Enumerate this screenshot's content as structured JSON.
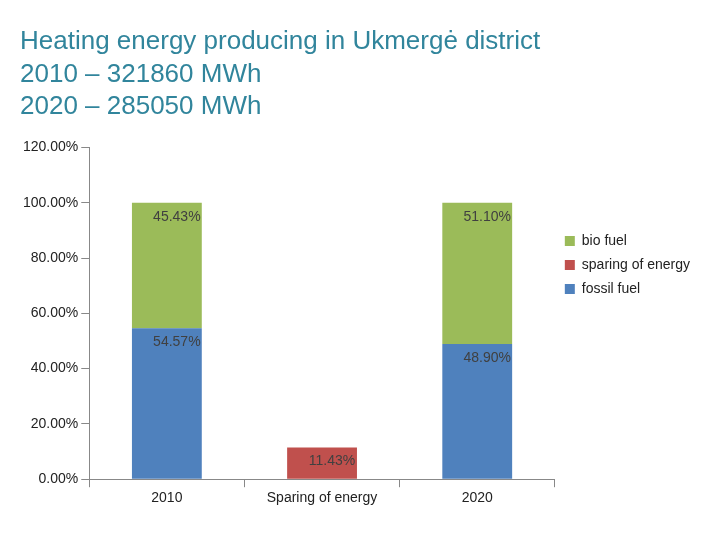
{
  "chart_data": {
    "type": "bar",
    "title": [
      "Heating energy producing in Ukmergė district",
      "2010 – 321860 MWh",
      "2020 – 285050 MWh"
    ],
    "categories": [
      "2010",
      "Sparing of energy",
      "2020"
    ],
    "series": [
      {
        "name": "fossil fuel",
        "color": "#4f81bd",
        "values": [
          54.57,
          null,
          48.9
        ],
        "value_labels": [
          "54.57%",
          null,
          "48.90%"
        ]
      },
      {
        "name": "sparing of energy",
        "color": "#c0504d",
        "values": [
          null,
          11.43,
          null
        ],
        "value_labels": [
          null,
          "11.43%",
          null
        ]
      },
      {
        "name": "bio fuel",
        "color": "#9bbb59",
        "values": [
          45.43,
          null,
          51.1
        ],
        "value_labels": [
          "45.43%",
          null,
          "51.10%"
        ]
      }
    ],
    "ylim": [
      0,
      120
    ],
    "yticks": [
      {
        "value": 0,
        "label": "0.00%"
      },
      {
        "value": 20,
        "label": "20.00%"
      },
      {
        "value": 40,
        "label": "40.00%"
      },
      {
        "value": 60,
        "label": "60.00%"
      },
      {
        "value": 80,
        "label": "80.00%"
      },
      {
        "value": 100,
        "label": "100.00%"
      },
      {
        "value": 120,
        "label": "120.00%"
      }
    ],
    "stacked": true,
    "grid": false,
    "legend": "right",
    "data_labels": true
  }
}
